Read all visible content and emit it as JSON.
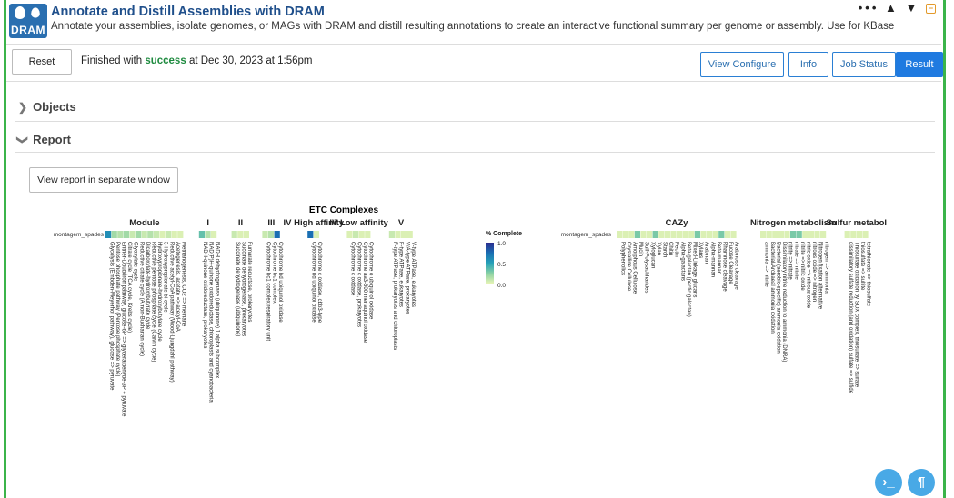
{
  "app": {
    "title": "Annotate and Distill Assemblies with DRAM",
    "subtitle": "Annotate your assemblies, isolate genomes, or MAGs with DRAM and distill resulting annotations to create an interactive functional summary per genome or assembly. Use for KBase",
    "logo_text": "DRAM"
  },
  "window_controls": {
    "more": "•••",
    "up": "🡅",
    "down": "🡇",
    "minimize": "−"
  },
  "toolbar": {
    "reset_label": "Reset",
    "status_prefix": "Finished with",
    "status_word": "success",
    "status_suffix": "at Dec 30, 2023 at 1:56pm",
    "tabs": [
      "View Configure",
      "Info",
      "Job Status",
      "Result"
    ]
  },
  "sections": {
    "objects": "Objects",
    "report": "Report"
  },
  "report": {
    "view_separate": "View report in separate window"
  },
  "heatmap": {
    "sample": "montagem_spades",
    "top_header": "ETC Complexes",
    "colorbar": {
      "title": "% Complete",
      "ticks": [
        "1.0",
        "0.5",
        "0.0"
      ],
      "colors": [
        "#2c2c8f",
        "#1a6fb3",
        "#27a3b8",
        "#8fd3a3",
        "#eef7b8"
      ]
    },
    "groups": [
      {
        "label": "Module",
        "modules": [
          "Glycolysis (Embden-Meyerhof pathway), glucose => pyruvate",
          "Pentose phosphate pathway (Pentose phosphate cycle)",
          "Entner-Doudoroff pathway, glucose-6P => glyceraldehyde-3P + pyruvate",
          "Citrate cycle (TCA cycle, Krebs cycle)",
          "Glyoxylate cycle",
          "Reductive citrate cycle (Arnon-Buchanan cycle)",
          "Dicarboxylate-hydroxybutyrate cycle",
          "Reductive pentose phosphate cycle (Calvin cycle)",
          "Hydroxypropionate-hydroxybutylate cycle",
          "3-Hydroxypropionate bi-cycle",
          "Reductive acetyl-CoA pathway (Wood-Ljungdahl pathway)",
          "Acetogenesis, acetate => acetyl-CoA",
          "Methanogenesis, CO2 => methane"
        ],
        "values": [
          0.6,
          0.2,
          0.15,
          0.2,
          0.1,
          0.2,
          0.1,
          0.15,
          0.1,
          0.05,
          0.1,
          0.05,
          0.05
        ]
      },
      {
        "label": "I",
        "modules": [
          "NADH-quinone oxidoreductase, prokaryotes",
          "NAD(P)H-quinone oxidoreductase, chloroplasts and cyanobacteria",
          "NADH dehydrogenase (ubiquinone) 1 alpha subcomplex"
        ],
        "values": [
          0.35,
          0.15,
          0.05
        ]
      },
      {
        "label": "II",
        "modules": [
          "Succinate dehydrogenase (ubiquinone)",
          "Succinate dehydrogenase, prokaryotes",
          "Fumarate reductase, prokaryotes"
        ],
        "values": [
          0.1,
          0.05,
          0.05
        ]
      },
      {
        "label": "III",
        "modules": [
          "Cytochrome bc1 complex respiratory unit",
          "Cytochrome bc1 complex",
          "Cytochrome bd ubiquinol oxidase"
        ],
        "values": [
          0.1,
          0.15,
          0.75
        ]
      },
      {
        "label": "IV High affinity",
        "modules": [
          "Cytochrome bd ubiquinol oxidase",
          "Cytochrome c oxidase, cbb3-type"
        ],
        "values": [
          0.75,
          0.05
        ]
      },
      {
        "label": "IV Low affinity",
        "modules": [
          "Cytochrome c oxidase",
          "Cytochrome c oxidase, prokaryotes",
          "Cytochrome aa3-600 menaquinol oxidase",
          "Cytochrome o ubiquinol oxidase"
        ],
        "values": [
          0.05,
          0.1,
          0.05,
          0.05
        ]
      },
      {
        "label": "V",
        "modules": [
          "F-type ATPase, prokaryotes and chloroplasts",
          "F-type ATPase, eukaryotes",
          "V/A-type ATPase, prokaryotes",
          "V-type ATPase, eukaryotes"
        ],
        "values": [
          0.1,
          0.05,
          0.05,
          0.05
        ]
      }
    ],
    "groups2": [
      {
        "label": "CAZy",
        "modules": [
          "Polyphenolics",
          "Crystalline Cellulose",
          "Amorphous Cellulose",
          "Mucin",
          "Sulf-Polysachharides",
          "Xyloglucan",
          "Xylan",
          "Starch",
          "Chitin",
          "Pectin",
          "Alpha-galactans",
          "Beta-galactan (pectic galactan)",
          "Mixed-Linkage glucans",
          "Xylans",
          "Arabinan",
          "Alpha-mannan",
          "Beta-mannan",
          "Rhamnose cleavage",
          "Fucose Cleavage",
          "Arabinose cleavage"
        ],
        "values": [
          0.05,
          0.05,
          0.05,
          0.3,
          0.05,
          0.05,
          0.3,
          0.05,
          0.05,
          0.05,
          0.05,
          0.05,
          0.05,
          0.3,
          0.05,
          0.05,
          0.05,
          0.3,
          0.05,
          0.05
        ]
      },
      {
        "label": "Nitrogen metabolism",
        "modules": [
          "ammonia => nitrite",
          "Bacterial/Archaeal ammonia oxidation",
          "Bacterial (aerobic-specific) ammonia oxidation",
          "Dissimilatory nitrite reduction to ammonia (DNRA)",
          "nitrite => nitrate",
          "nitrate => nitrite",
          "nitrite => nitric oxide",
          "nitric oxide => nitrous oxide",
          "nitrous oxide => nitrogen",
          "Nitrogen fixation altennative",
          "nitrogen => ammonia"
        ],
        "values": [
          0.05,
          0.05,
          0.05,
          0.05,
          0.05,
          0.3,
          0.3,
          0.05,
          0.05,
          0.05,
          0.05
        ]
      },
      {
        "label": "Sulfur metabol",
        "modules": [
          "dissimilatory sulfate reduction (and oxidation) sulfate => sulfide",
          "Thiosulfate oxidation by SOX complex, thiosulfate => sulfate",
          "thiosulfate => sulfite",
          "tetrathionate => thiosulfate"
        ],
        "values": [
          0.05,
          0.05,
          0.05,
          0.05
        ]
      }
    ]
  },
  "fab": {
    "console": "⌨",
    "pilcrow": "¶"
  }
}
